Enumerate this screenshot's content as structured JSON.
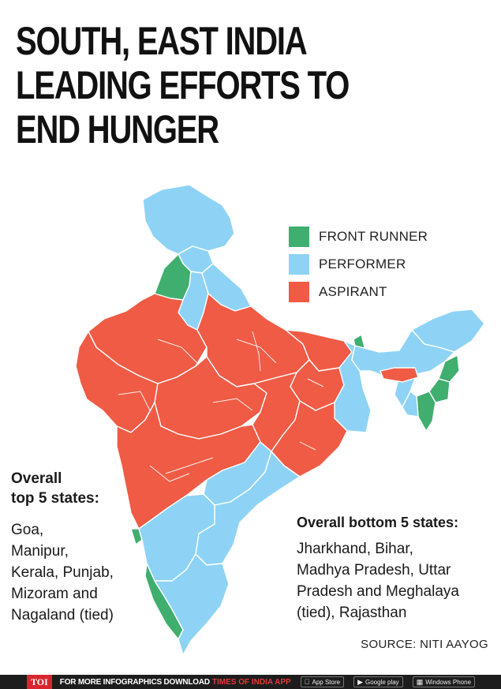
{
  "headline": {
    "line1": "SOUTH, EAST INDIA",
    "line2": "LEADING EFFORTS TO",
    "line3": "END HUNGER"
  },
  "legend": {
    "items": [
      {
        "label": "FRONT RUNNER",
        "color": "#3fae6e"
      },
      {
        "label": "PERFORMER",
        "color": "#8ed3f5"
      },
      {
        "label": "ASPIRANT",
        "color": "#ef5b45"
      }
    ]
  },
  "top_states": {
    "heading_line1": "Overall",
    "heading_line2": "top 5 states:",
    "lines": [
      "Goa,",
      "Manipur,",
      "Kerala, Punjab,",
      "Mizoram and",
      "Nagaland (tied)"
    ]
  },
  "bottom_states": {
    "heading": "Overall bottom 5 states:",
    "lines": [
      "Jharkhand, Bihar,",
      "Madhya Pradesh, Uttar",
      "Pradesh and Meghalaya",
      "(tied), Rajasthan"
    ]
  },
  "source": "SOURCE: NITI AAYOG",
  "footer": {
    "badge": "TOI",
    "text": "FOR MORE  INFOGRAPHICS DOWNLOAD",
    "brand": "TIMES OF INDIA APP",
    "stores": [
      {
        "label": "App Store",
        "icon": "apple-icon"
      },
      {
        "label": "Google play",
        "icon": "play-icon"
      },
      {
        "label": "Windows Phone",
        "icon": "windows-icon"
      }
    ]
  },
  "colors": {
    "front_runner": "#3fae6e",
    "performer": "#8ed3f5",
    "aspirant": "#ef5b45",
    "border": "#ffffff"
  },
  "regions": [
    {
      "name": "jammu-kashmir",
      "category": "performer"
    },
    {
      "name": "himachal-pradesh",
      "category": "performer"
    },
    {
      "name": "punjab",
      "category": "front_runner"
    },
    {
      "name": "uttarakhand",
      "category": "performer"
    },
    {
      "name": "haryana",
      "category": "performer"
    },
    {
      "name": "rajasthan",
      "category": "aspirant"
    },
    {
      "name": "uttar-pradesh",
      "category": "aspirant"
    },
    {
      "name": "gujarat",
      "category": "aspirant"
    },
    {
      "name": "madhya-pradesh",
      "category": "aspirant"
    },
    {
      "name": "bihar",
      "category": "aspirant"
    },
    {
      "name": "jharkhand",
      "category": "aspirant"
    },
    {
      "name": "west-bengal",
      "category": "performer"
    },
    {
      "name": "sikkim",
      "category": "front_runner"
    },
    {
      "name": "chhattisgarh",
      "category": "aspirant"
    },
    {
      "name": "odisha",
      "category": "aspirant"
    },
    {
      "name": "maharashtra",
      "category": "aspirant"
    },
    {
      "name": "telangana",
      "category": "performer"
    },
    {
      "name": "andhra-pradesh",
      "category": "performer"
    },
    {
      "name": "goa",
      "category": "front_runner"
    },
    {
      "name": "karnataka",
      "category": "performer"
    },
    {
      "name": "kerala",
      "category": "front_runner"
    },
    {
      "name": "tamil-nadu",
      "category": "performer"
    },
    {
      "name": "arunachal-pradesh",
      "category": "performer"
    },
    {
      "name": "assam",
      "category": "performer"
    },
    {
      "name": "meghalaya",
      "category": "aspirant"
    },
    {
      "name": "nagaland",
      "category": "front_runner"
    },
    {
      "name": "manipur",
      "category": "front_runner"
    },
    {
      "name": "mizoram",
      "category": "front_runner"
    },
    {
      "name": "tripura",
      "category": "performer"
    }
  ]
}
